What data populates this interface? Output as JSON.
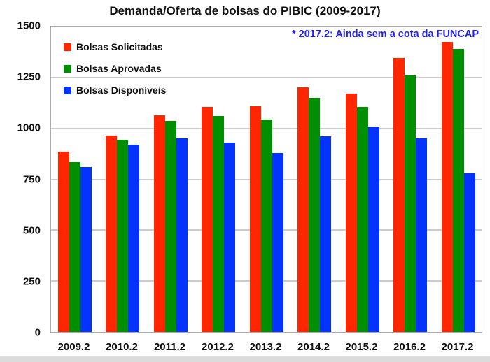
{
  "chart_data": {
    "type": "bar",
    "title": "Demanda/Oferta de bolsas do PIBIC (2009-2017)",
    "categories": [
      "2009.2",
      "2010.2",
      "2011.2",
      "2012.2",
      "2013.2",
      "2014.2",
      "2015.2",
      "2016.2",
      "2017.2"
    ],
    "series": [
      {
        "name": "Bolsas Solicitadas",
        "color": "#ff2600",
        "values": [
          885,
          965,
          1065,
          1105,
          1110,
          1200,
          1170,
          1345,
          1425
        ]
      },
      {
        "name": "Bolsas Aprovadas",
        "color": "#008f00",
        "values": [
          835,
          945,
          1035,
          1060,
          1045,
          1150,
          1105,
          1260,
          1390
        ]
      },
      {
        "name": "Bolsas Disponíveis",
        "color": "#0433ff",
        "values": [
          810,
          920,
          950,
          930,
          880,
          960,
          1005,
          950,
          780
        ]
      }
    ],
    "xlabel": "",
    "ylabel": "",
    "ylim": [
      0,
      1500
    ],
    "yticks": [
      0,
      250,
      500,
      750,
      1000,
      1250,
      1500
    ],
    "grid": true,
    "legend_position": "top-left-inside",
    "annotation": "* 2017.2: Ainda sem a cota da FUNCAP",
    "annotation_color": "#2222ee"
  }
}
